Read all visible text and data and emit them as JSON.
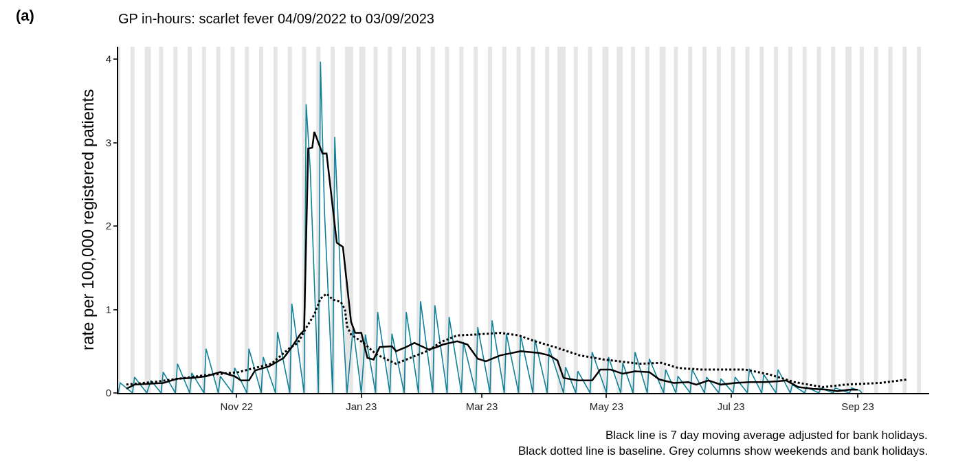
{
  "chart_data": {
    "type": "line",
    "title": "GP in-hours: scarlet fever 04/09/2022 to 03/09/2023",
    "ylabel": "rate per 100,000 registered patients",
    "annotations": [
      "(a)",
      "Black line is 7 day moving average adjusted for bank holidays.",
      "Black dotted line is baseline. Grey columns show weekends and bank holidays."
    ],
    "xlim": [
      "2022-09-04",
      "2023-10-06"
    ],
    "xticks": [
      {
        "value": "2022-11-01",
        "label": "Nov 22"
      },
      {
        "value": "2023-01-01",
        "label": "Jan 23"
      },
      {
        "value": "2023-03-01",
        "label": "Mar 23"
      },
      {
        "value": "2023-05-01",
        "label": "May 23"
      },
      {
        "value": "2023-07-01",
        "label": "Jul 23"
      },
      {
        "value": "2023-09-01",
        "label": "Sep 23"
      }
    ],
    "ylim": [
      0,
      4.15
    ],
    "yticks": [
      0,
      1,
      2,
      3,
      4
    ],
    "grid": false,
    "marker": "none",
    "series": [
      {
        "color": "#0f8299",
        "line_style": "solid",
        "x": [
          "2022-09-04",
          "2022-09-05",
          "2022-09-11",
          "2022-09-12",
          "2022-09-18",
          "2022-09-20",
          "2022-09-25",
          "2022-09-26",
          "2022-10-02",
          "2022-10-03",
          "2022-10-09",
          "2022-10-10",
          "2022-10-16",
          "2022-10-17",
          "2022-10-23",
          "2022-10-24",
          "2022-10-30",
          "2022-10-31",
          "2022-11-06",
          "2022-11-07",
          "2022-11-13",
          "2022-11-14",
          "2022-11-20",
          "2022-11-21",
          "2022-11-27",
          "2022-11-28",
          "2022-12-04",
          "2022-12-05",
          "2022-12-07",
          "2022-12-11",
          "2022-12-12",
          "2022-12-14",
          "2022-12-18",
          "2022-12-19",
          "2022-12-22",
          "2022-12-25",
          "2022-12-28",
          "2023-01-01",
          "2023-01-03",
          "2023-01-08",
          "2023-01-09",
          "2023-01-15",
          "2023-01-16",
          "2023-01-22",
          "2023-01-23",
          "2023-01-29",
          "2023-01-30",
          "2023-02-05",
          "2023-02-06",
          "2023-02-12",
          "2023-02-13",
          "2023-02-19",
          "2023-02-20",
          "2023-02-26",
          "2023-02-27",
          "2023-03-05",
          "2023-03-06",
          "2023-03-12",
          "2023-03-13",
          "2023-03-19",
          "2023-03-20",
          "2023-03-26",
          "2023-03-27",
          "2023-04-02",
          "2023-04-03",
          "2023-04-10",
          "2023-04-11",
          "2023-04-16",
          "2023-04-17",
          "2023-04-23",
          "2023-04-24",
          "2023-05-01",
          "2023-05-02",
          "2023-05-08",
          "2023-05-09",
          "2023-05-14",
          "2023-05-15",
          "2023-05-21",
          "2023-05-22",
          "2023-05-29",
          "2023-05-30",
          "2023-06-04",
          "2023-06-05",
          "2023-06-11",
          "2023-06-12",
          "2023-06-18",
          "2023-06-19",
          "2023-06-25",
          "2023-06-26",
          "2023-07-02",
          "2023-07-03",
          "2023-07-09",
          "2023-07-10",
          "2023-07-16",
          "2023-07-17",
          "2023-07-23",
          "2023-07-24",
          "2023-07-30",
          "2023-07-31",
          "2023-08-06",
          "2023-08-07",
          "2023-08-13",
          "2023-08-14",
          "2023-08-20",
          "2023-08-21",
          "2023-08-28",
          "2023-08-29",
          "2023-09-02",
          "2023-09-03"
        ],
        "values": [
          0,
          0.12,
          0,
          0.19,
          0,
          0.15,
          0,
          0.25,
          0,
          0.35,
          0,
          0.24,
          0,
          0.53,
          0,
          0.2,
          0,
          0.3,
          0,
          0.53,
          0,
          0.43,
          0,
          0.73,
          0,
          1.07,
          0,
          3.46,
          2.68,
          0,
          3.97,
          2.16,
          0,
          3.07,
          1.25,
          0,
          0.78,
          0,
          0.7,
          0,
          0.97,
          0,
          0.71,
          0,
          0.97,
          0,
          1.1,
          0,
          1.05,
          0,
          0.91,
          0,
          0.61,
          0,
          0.79,
          0,
          0.87,
          0,
          0.71,
          0,
          0.69,
          0,
          0.64,
          0,
          0.54,
          0,
          0.31,
          0,
          0.26,
          0,
          0.49,
          0,
          0.43,
          0,
          0.36,
          0,
          0.49,
          0,
          0.41,
          0,
          0.28,
          0,
          0.2,
          0,
          0.28,
          0,
          0.19,
          0,
          0.17,
          0,
          0.19,
          0,
          0.29,
          0,
          0.22,
          0,
          0.28,
          0,
          0.1,
          0,
          0.07,
          0,
          0.06,
          0,
          0.06,
          0,
          0.06,
          0.03,
          0
        ]
      },
      {
        "color": "#000000",
        "line_style": "solid",
        "x": [
          "2022-09-08",
          "2022-09-12",
          "2022-09-26",
          "2022-10-03",
          "2022-10-10",
          "2022-10-17",
          "2022-10-24",
          "2022-10-31",
          "2022-11-03",
          "2022-11-07",
          "2022-11-10",
          "2022-11-17",
          "2022-11-24",
          "2022-11-28",
          "2022-12-02",
          "2022-12-04",
          "2022-12-06",
          "2022-12-08",
          "2022-12-09",
          "2022-12-11",
          "2022-12-13",
          "2022-12-15",
          "2022-12-20",
          "2022-12-23",
          "2022-12-27",
          "2022-12-29",
          "2023-01-01",
          "2023-01-04",
          "2023-01-07",
          "2023-01-10",
          "2023-01-16",
          "2023-01-18",
          "2023-01-23",
          "2023-01-27",
          "2023-02-03",
          "2023-02-07",
          "2023-02-10",
          "2023-02-17",
          "2023-02-22",
          "2023-02-27",
          "2023-03-03",
          "2023-03-10",
          "2023-03-20",
          "2023-03-29",
          "2023-04-03",
          "2023-04-07",
          "2023-04-10",
          "2023-04-17",
          "2023-04-24",
          "2023-04-28",
          "2023-05-03",
          "2023-05-09",
          "2023-05-15",
          "2023-05-22",
          "2023-05-27",
          "2023-06-03",
          "2023-06-10",
          "2023-06-14",
          "2023-06-20",
          "2023-06-26",
          "2023-07-03",
          "2023-07-10",
          "2023-07-17",
          "2023-07-24",
          "2023-07-28",
          "2023-08-03",
          "2023-08-10",
          "2023-08-17",
          "2023-08-22",
          "2023-08-28",
          "2023-09-01"
        ],
        "values": [
          0.05,
          0.1,
          0.12,
          0.17,
          0.18,
          0.2,
          0.25,
          0.2,
          0.15,
          0.15,
          0.27,
          0.32,
          0.42,
          0.55,
          0.7,
          0.75,
          2.93,
          2.94,
          3.13,
          3.0,
          2.87,
          2.87,
          1.8,
          1.75,
          0.85,
          0.72,
          0.72,
          0.42,
          0.4,
          0.55,
          0.56,
          0.5,
          0.55,
          0.6,
          0.52,
          0.55,
          0.58,
          0.62,
          0.58,
          0.41,
          0.38,
          0.45,
          0.5,
          0.48,
          0.45,
          0.39,
          0.18,
          0.15,
          0.15,
          0.28,
          0.28,
          0.23,
          0.26,
          0.25,
          0.16,
          0.12,
          0.13,
          0.1,
          0.15,
          0.1,
          0.12,
          0.13,
          0.13,
          0.14,
          0.15,
          0.07,
          0.05,
          0.04,
          0.02,
          0.04,
          0.04
        ]
      },
      {
        "color": "#000000",
        "line_style": "dotted",
        "x": [
          "2022-09-08",
          "2022-09-21",
          "2022-10-16",
          "2022-11-02",
          "2022-11-18",
          "2022-11-27",
          "2022-12-01",
          "2022-12-05",
          "2022-12-09",
          "2022-12-12",
          "2022-12-15",
          "2022-12-18",
          "2022-12-22",
          "2022-12-24",
          "2022-12-25",
          "2022-12-27",
          "2023-01-02",
          "2023-01-08",
          "2023-01-11",
          "2023-01-18",
          "2023-01-26",
          "2023-02-03",
          "2023-02-09",
          "2023-02-17",
          "2023-02-26",
          "2023-03-10",
          "2023-03-19",
          "2023-03-27",
          "2023-04-07",
          "2023-04-18",
          "2023-04-30",
          "2023-05-17",
          "2023-05-28",
          "2023-06-05",
          "2023-06-16",
          "2023-07-08",
          "2023-07-20",
          "2023-08-01",
          "2023-08-15",
          "2023-08-26",
          "2023-09-12",
          "2023-09-25"
        ],
        "values": [
          0.1,
          0.13,
          0.21,
          0.25,
          0.35,
          0.54,
          0.6,
          0.78,
          0.94,
          1.13,
          1.19,
          1.12,
          1.09,
          1.0,
          0.8,
          0.7,
          0.6,
          0.47,
          0.43,
          0.35,
          0.43,
          0.51,
          0.61,
          0.69,
          0.7,
          0.72,
          0.69,
          0.62,
          0.54,
          0.45,
          0.4,
          0.35,
          0.36,
          0.3,
          0.28,
          0.28,
          0.22,
          0.13,
          0.07,
          0.1,
          0.12,
          0.16
        ]
      }
    ],
    "bands": [
      {
        "axis": "x",
        "from": "2022-09-04",
        "to": "2022-09-05",
        "color": "#e6e6e6"
      },
      {
        "axis": "x",
        "from": "2022-09-10",
        "to": "2022-09-12",
        "color": "#e6e6e6"
      },
      {
        "axis": "x",
        "from": "2022-09-17",
        "to": "2022-09-20",
        "color": "#e6e6e6"
      },
      {
        "axis": "x",
        "from": "2022-09-24",
        "to": "2022-09-26",
        "color": "#e6e6e6"
      },
      {
        "axis": "x",
        "from": "2022-10-01",
        "to": "2022-10-03",
        "color": "#e6e6e6"
      },
      {
        "axis": "x",
        "from": "2022-10-08",
        "to": "2022-10-10",
        "color": "#e6e6e6"
      },
      {
        "axis": "x",
        "from": "2022-10-15",
        "to": "2022-10-17",
        "color": "#e6e6e6"
      },
      {
        "axis": "x",
        "from": "2022-10-22",
        "to": "2022-10-24",
        "color": "#e6e6e6"
      },
      {
        "axis": "x",
        "from": "2022-10-29",
        "to": "2022-10-31",
        "color": "#e6e6e6"
      },
      {
        "axis": "x",
        "from": "2022-11-05",
        "to": "2022-11-07",
        "color": "#e6e6e6"
      },
      {
        "axis": "x",
        "from": "2022-11-12",
        "to": "2022-11-14",
        "color": "#e6e6e6"
      },
      {
        "axis": "x",
        "from": "2022-11-19",
        "to": "2022-11-21",
        "color": "#e6e6e6"
      },
      {
        "axis": "x",
        "from": "2022-11-26",
        "to": "2022-11-28",
        "color": "#e6e6e6"
      },
      {
        "axis": "x",
        "from": "2022-12-03",
        "to": "2022-12-05",
        "color": "#e6e6e6"
      },
      {
        "axis": "x",
        "from": "2022-12-10",
        "to": "2022-12-12",
        "color": "#e6e6e6"
      },
      {
        "axis": "x",
        "from": "2022-12-17",
        "to": "2022-12-19",
        "color": "#e6e6e6"
      },
      {
        "axis": "x",
        "from": "2022-12-24",
        "to": "2022-12-28",
        "color": "#e6e6e6"
      },
      {
        "axis": "x",
        "from": "2022-12-31",
        "to": "2023-01-03",
        "color": "#e6e6e6"
      },
      {
        "axis": "x",
        "from": "2023-01-07",
        "to": "2023-01-09",
        "color": "#e6e6e6"
      },
      {
        "axis": "x",
        "from": "2023-01-14",
        "to": "2023-01-16",
        "color": "#e6e6e6"
      },
      {
        "axis": "x",
        "from": "2023-01-21",
        "to": "2023-01-23",
        "color": "#e6e6e6"
      },
      {
        "axis": "x",
        "from": "2023-01-28",
        "to": "2023-01-30",
        "color": "#e6e6e6"
      },
      {
        "axis": "x",
        "from": "2023-02-04",
        "to": "2023-02-06",
        "color": "#e6e6e6"
      },
      {
        "axis": "x",
        "from": "2023-02-11",
        "to": "2023-02-13",
        "color": "#e6e6e6"
      },
      {
        "axis": "x",
        "from": "2023-02-18",
        "to": "2023-02-20",
        "color": "#e6e6e6"
      },
      {
        "axis": "x",
        "from": "2023-02-25",
        "to": "2023-02-27",
        "color": "#e6e6e6"
      },
      {
        "axis": "x",
        "from": "2023-03-04",
        "to": "2023-03-06",
        "color": "#e6e6e6"
      },
      {
        "axis": "x",
        "from": "2023-03-11",
        "to": "2023-03-13",
        "color": "#e6e6e6"
      },
      {
        "axis": "x",
        "from": "2023-03-18",
        "to": "2023-03-20",
        "color": "#e6e6e6"
      },
      {
        "axis": "x",
        "from": "2023-03-25",
        "to": "2023-03-27",
        "color": "#e6e6e6"
      },
      {
        "axis": "x",
        "from": "2023-04-01",
        "to": "2023-04-03",
        "color": "#e6e6e6"
      },
      {
        "axis": "x",
        "from": "2023-04-07",
        "to": "2023-04-11",
        "color": "#e6e6e6"
      },
      {
        "axis": "x",
        "from": "2023-04-15",
        "to": "2023-04-17",
        "color": "#e6e6e6"
      },
      {
        "axis": "x",
        "from": "2023-04-22",
        "to": "2023-04-24",
        "color": "#e6e6e6"
      },
      {
        "axis": "x",
        "from": "2023-04-29",
        "to": "2023-05-02",
        "color": "#e6e6e6"
      },
      {
        "axis": "x",
        "from": "2023-05-06",
        "to": "2023-05-09",
        "color": "#e6e6e6"
      },
      {
        "axis": "x",
        "from": "2023-05-13",
        "to": "2023-05-15",
        "color": "#e6e6e6"
      },
      {
        "axis": "x",
        "from": "2023-05-20",
        "to": "2023-05-22",
        "color": "#e6e6e6"
      },
      {
        "axis": "x",
        "from": "2023-05-27",
        "to": "2023-05-30",
        "color": "#e6e6e6"
      },
      {
        "axis": "x",
        "from": "2023-06-03",
        "to": "2023-06-05",
        "color": "#e6e6e6"
      },
      {
        "axis": "x",
        "from": "2023-06-10",
        "to": "2023-06-12",
        "color": "#e6e6e6"
      },
      {
        "axis": "x",
        "from": "2023-06-17",
        "to": "2023-06-19",
        "color": "#e6e6e6"
      },
      {
        "axis": "x",
        "from": "2023-06-24",
        "to": "2023-06-26",
        "color": "#e6e6e6"
      },
      {
        "axis": "x",
        "from": "2023-07-01",
        "to": "2023-07-03",
        "color": "#e6e6e6"
      },
      {
        "axis": "x",
        "from": "2023-07-08",
        "to": "2023-07-10",
        "color": "#e6e6e6"
      },
      {
        "axis": "x",
        "from": "2023-07-15",
        "to": "2023-07-17",
        "color": "#e6e6e6"
      },
      {
        "axis": "x",
        "from": "2023-07-22",
        "to": "2023-07-24",
        "color": "#e6e6e6"
      },
      {
        "axis": "x",
        "from": "2023-07-29",
        "to": "2023-07-31",
        "color": "#e6e6e6"
      },
      {
        "axis": "x",
        "from": "2023-08-05",
        "to": "2023-08-07",
        "color": "#e6e6e6"
      },
      {
        "axis": "x",
        "from": "2023-08-12",
        "to": "2023-08-14",
        "color": "#e6e6e6"
      },
      {
        "axis": "x",
        "from": "2023-08-19",
        "to": "2023-08-21",
        "color": "#e6e6e6"
      },
      {
        "axis": "x",
        "from": "2023-08-26",
        "to": "2023-08-29",
        "color": "#e6e6e6"
      },
      {
        "axis": "x",
        "from": "2023-09-02",
        "to": "2023-09-04",
        "color": "#e6e6e6"
      },
      {
        "axis": "x",
        "from": "2023-09-09",
        "to": "2023-09-11",
        "color": "#e6e6e6"
      },
      {
        "axis": "x",
        "from": "2023-09-16",
        "to": "2023-09-18",
        "color": "#e6e6e6"
      },
      {
        "axis": "x",
        "from": "2023-09-23",
        "to": "2023-09-25",
        "color": "#e6e6e6"
      },
      {
        "axis": "x",
        "from": "2023-09-30",
        "to": "2023-10-02",
        "color": "#e6e6e6"
      }
    ]
  }
}
